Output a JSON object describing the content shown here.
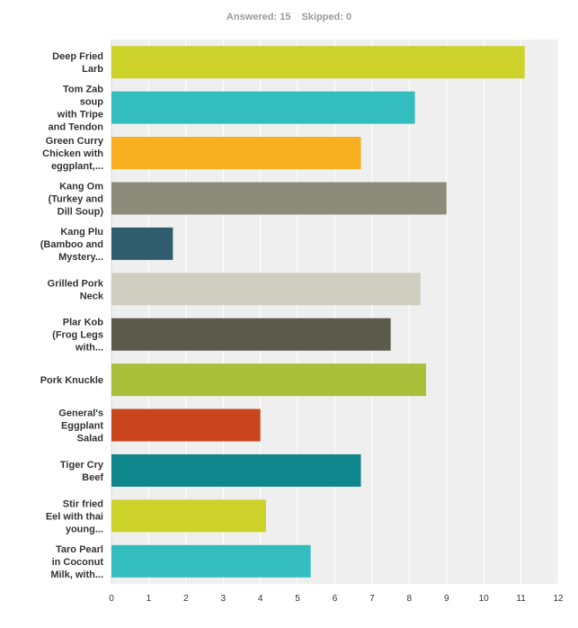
{
  "summary": {
    "answered": "Answered: 15",
    "skipped": "Skipped: 0"
  },
  "chart_data": {
    "type": "bar",
    "orientation": "horizontal",
    "categories": [
      [
        "Deep Fried",
        "Larb"
      ],
      [
        "Tom Zab",
        "soup",
        "with Tripe",
        "and Tendon"
      ],
      [
        "Green Curry",
        "Chicken with",
        "eggplant,..."
      ],
      [
        "Kang Om",
        "(Turkey and",
        "Dill Soup)"
      ],
      [
        "Kang Plu",
        "(Bamboo and",
        "Mystery..."
      ],
      [
        "Grilled Pork",
        "Neck"
      ],
      [
        "Plar Kob",
        "(Frog Legs",
        "with..."
      ],
      [
        "Pork Knuckle"
      ],
      [
        "General's",
        "Eggplant",
        "Salad"
      ],
      [
        "Tiger Cry",
        "Beef"
      ],
      [
        "Stir fried",
        "Eel with thai",
        "young..."
      ],
      [
        "Taro Pearl",
        "in Coconut",
        "Milk, with..."
      ]
    ],
    "values": [
      11.1,
      8.15,
      6.7,
      9.0,
      1.65,
      8.3,
      7.5,
      8.45,
      4.0,
      6.7,
      4.15,
      5.35
    ],
    "colors": [
      "#ccd22a",
      "#33bdbf",
      "#f7ae1f",
      "#8b8c7a",
      "#2f5d6e",
      "#d0cec1",
      "#5c5a4b",
      "#a9be39",
      "#c8451d",
      "#0f868b",
      "#ccd22a",
      "#33bdbf"
    ],
    "xlim": [
      0,
      12
    ],
    "xticks": [
      "0",
      "1",
      "2",
      "3",
      "4",
      "5",
      "6",
      "7",
      "8",
      "9",
      "10",
      "11",
      "12"
    ],
    "grid": true,
    "plot_background": "#efefef",
    "gridline_color": "#ffffff"
  }
}
